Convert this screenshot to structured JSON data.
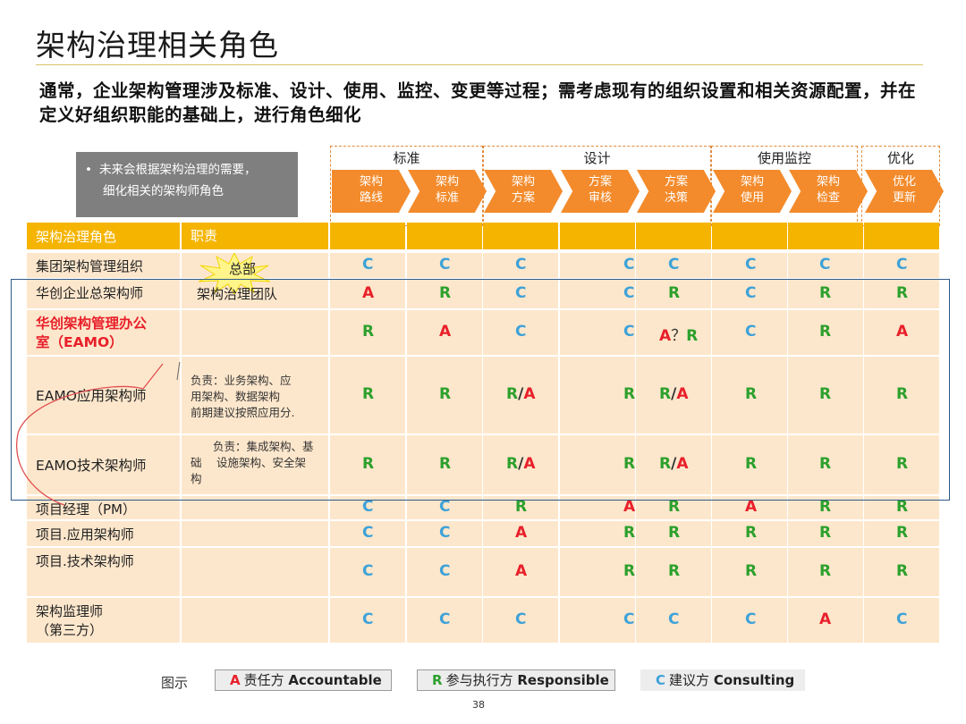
{
  "title": "架构治理相关角色",
  "subtitle": "通常，企业架构管理涉及标准、设计、使用、监控、变更等过程；需考虑现有的组织设置和相关资源配置，并在定义好组织职能的基础上，进行角色细化",
  "note": {
    "bullet": "•",
    "text_line1": "未来会根据架构治理的需要，",
    "text_line2": "细化相关的架构师角色"
  },
  "phases": [
    "标准",
    "设计",
    "使用监控",
    "优化"
  ],
  "steps": [
    "架构\n路线",
    "架构\n标准",
    "架构\n方案",
    "方案\n审核",
    "方案\n决策",
    "架构\n使用",
    "架构\n检查",
    "优化\n更新"
  ],
  "steps_lines": [
    [
      "架构",
      "路线"
    ],
    [
      "架构",
      "标准"
    ],
    [
      "架构",
      "方案"
    ],
    [
      "方案",
      "审核"
    ],
    [
      "方案",
      "决策"
    ],
    [
      "架构",
      "使用"
    ],
    [
      "架构",
      "检查"
    ],
    [
      "优化",
      "更新"
    ]
  ],
  "table_header": {
    "role": "架构治理角色",
    "duty": "职责"
  },
  "rows": [
    {
      "role_lines": [
        "集团架构管理组织"
      ],
      "duty_lines": [],
      "marks": [
        "C",
        "C",
        "C",
        "C",
        "C",
        "C",
        "C",
        "C"
      ]
    },
    {
      "role_lines": [
        "华创企业总架构师"
      ],
      "duty_lines": [],
      "marks": [
        "A",
        "R",
        "C",
        "C",
        "R",
        "C",
        "R",
        "R"
      ]
    },
    {
      "role_lines": [
        "华创架构管理办公",
        "室（EAMO）"
      ],
      "duty_lines": [],
      "marks": [
        "R",
        "A",
        "C",
        "C",
        "A？R",
        "C",
        "R",
        "A"
      ]
    },
    {
      "role_lines": [
        "EAMO应用架构师"
      ],
      "duty_lines": [
        "负责：业务架构、应",
        "用架构、数据架构",
        "前期建议按照应用分."
      ],
      "marks": [
        "R",
        "R",
        "R/A",
        "R",
        "R/A",
        "R",
        "R",
        "R"
      ]
    },
    {
      "role_lines": [
        "EAMO技术架构师"
      ],
      "duty_lines": [
        "　　负责：集成架构、基",
        "础　 设施架构、安全架",
        "构"
      ],
      "marks": [
        "R",
        "R",
        "R/A",
        "R",
        "R/A",
        "R",
        "R",
        "R"
      ]
    },
    {
      "role_lines": [
        "项目经理（PM）"
      ],
      "duty_lines": [],
      "marks": [
        "C",
        "C",
        "R",
        "A",
        "R",
        "A",
        "R",
        "R"
      ]
    },
    {
      "role_lines": [
        "项目.应用架构师"
      ],
      "duty_lines": [],
      "marks": [
        "C",
        "C",
        "A",
        "R",
        "R",
        "R",
        "R",
        "R"
      ]
    },
    {
      "role_lines": [
        "项目.技术架构师"
      ],
      "duty_lines": [],
      "marks": [
        "C",
        "C",
        "A",
        "R",
        "R",
        "R",
        "R",
        "R"
      ]
    },
    {
      "role_lines": [
        "架构监理师",
        "（第三方）"
      ],
      "duty_lines": [],
      "marks": [
        "C",
        "C",
        "C",
        "C",
        "C",
        "C",
        "A",
        "C"
      ]
    }
  ],
  "annotations": {
    "hq": "总部",
    "team": "架构治理团队"
  },
  "legend": {
    "title": "图示",
    "items": [
      {
        "key": "A",
        "cn": "责任方",
        "en": "Accountable"
      },
      {
        "key": "R",
        "cn": "参与执行方",
        "en": "Responsible"
      },
      {
        "key": "C",
        "cn": "建议方",
        "en": "Consulting"
      }
    ]
  },
  "page_number": "38",
  "colors": {
    "accent_orange": "#f38b2c",
    "header_gold": "#f5b400",
    "row_fill": "#fde7cc",
    "C": "#3ea2d8",
    "R": "#2ca02c",
    "A": "#e8202a",
    "group_border": "#2e5a8a"
  }
}
